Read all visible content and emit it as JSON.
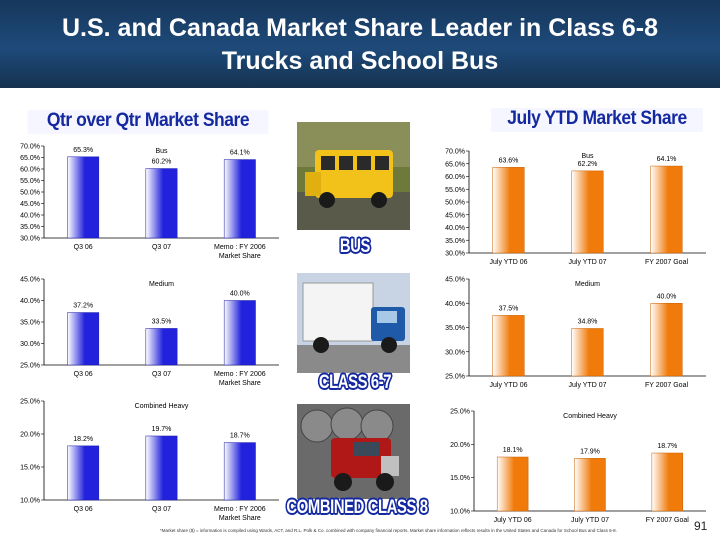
{
  "header": {
    "line1": "U.S. and Canada Market Share Leader in Class 6-8",
    "line2": "Trucks and School Bus"
  },
  "banners": {
    "left": "Qtr over Qtr Market Share",
    "right": "July YTD Market Share"
  },
  "category_labels": {
    "bus": "BUS",
    "medium": "CLASS 6-7",
    "heavy": "COMBINED CLASS 8"
  },
  "colors": {
    "header": "#1e4a7a",
    "bar_blue": "#2222dd",
    "bar_orange": "#f07a0a",
    "banner_text": "#1428a0"
  },
  "footnote": "*Market share ($) = information is compiled using Wards, ACT, and R.L. Polk & Co. combined with company financial reports. Market share information reflects results in the United States and Canada for School Bus and Class 6-8.",
  "page_number": "91",
  "chart_data": [
    {
      "type": "bar",
      "title": "Bus",
      "categories": [
        "Q3 06",
        "Q3 07",
        "Memo : FY 2006 Market Share"
      ],
      "values": [
        65.3,
        60.2,
        64.1
      ],
      "value_labels": [
        "65.3%",
        "60.2%",
        "64.1%"
      ],
      "ylim": [
        30,
        70
      ],
      "yticks": [
        "30.0%",
        "35.0%",
        "40.0%",
        "45.0%",
        "50.0%",
        "55.0%",
        "60.0%",
        "65.0%",
        "70.0%"
      ],
      "color": "blue"
    },
    {
      "type": "bar",
      "title": "Medium",
      "categories": [
        "Q3 06",
        "Q3 07",
        "Memo : FY 2006 Market Share"
      ],
      "values": [
        37.2,
        33.5,
        40.0
      ],
      "value_labels": [
        "37.2%",
        "33.5%",
        "40.0%"
      ],
      "ylim": [
        25,
        45
      ],
      "yticks": [
        "25.0%",
        "30.0%",
        "35.0%",
        "40.0%",
        "45.0%"
      ],
      "color": "blue"
    },
    {
      "type": "bar",
      "title": "Combined Heavy",
      "categories": [
        "Q3 06",
        "Q3 07",
        "Memo : FY 2006 Market Share"
      ],
      "values": [
        18.2,
        19.7,
        18.7
      ],
      "value_labels": [
        "18.2%",
        "19.7%",
        "18.7%"
      ],
      "ylim": [
        10,
        25
      ],
      "yticks": [
        "10.0%",
        "15.0%",
        "20.0%",
        "25.0%"
      ],
      "color": "blue"
    },
    {
      "type": "bar",
      "title": "Bus",
      "categories": [
        "July YTD 06",
        "July YTD 07",
        "FY 2007 Goal"
      ],
      "values": [
        63.6,
        62.2,
        64.1
      ],
      "value_labels": [
        "63.6%",
        "62.2%",
        "64.1%"
      ],
      "ylim": [
        30,
        70
      ],
      "yticks": [
        "30.0%",
        "35.0%",
        "40.0%",
        "45.0%",
        "50.0%",
        "55.0%",
        "60.0%",
        "65.0%",
        "70.0%"
      ],
      "color": "orange"
    },
    {
      "type": "bar",
      "title": "Medium",
      "categories": [
        "July YTD 06",
        "July YTD 07",
        "FY 2007 Goal"
      ],
      "values": [
        37.5,
        34.8,
        40.0
      ],
      "value_labels": [
        "37.5%",
        "34.8%",
        "40.0%"
      ],
      "ylim": [
        25,
        45
      ],
      "yticks": [
        "25.0%",
        "30.0%",
        "35.0%",
        "40.0%",
        "45.0%"
      ],
      "color": "orange"
    },
    {
      "type": "bar",
      "title": "Combined Heavy",
      "categories": [
        "July YTD 06",
        "July YTD 07",
        "FY 2007 Goal"
      ],
      "values": [
        18.1,
        17.9,
        18.7
      ],
      "value_labels": [
        "18.1%",
        "17.9%",
        "18.7%"
      ],
      "ylim": [
        10,
        25
      ],
      "yticks": [
        "10.0%",
        "15.0%",
        "20.0%",
        "25.0%"
      ],
      "color": "orange"
    }
  ]
}
